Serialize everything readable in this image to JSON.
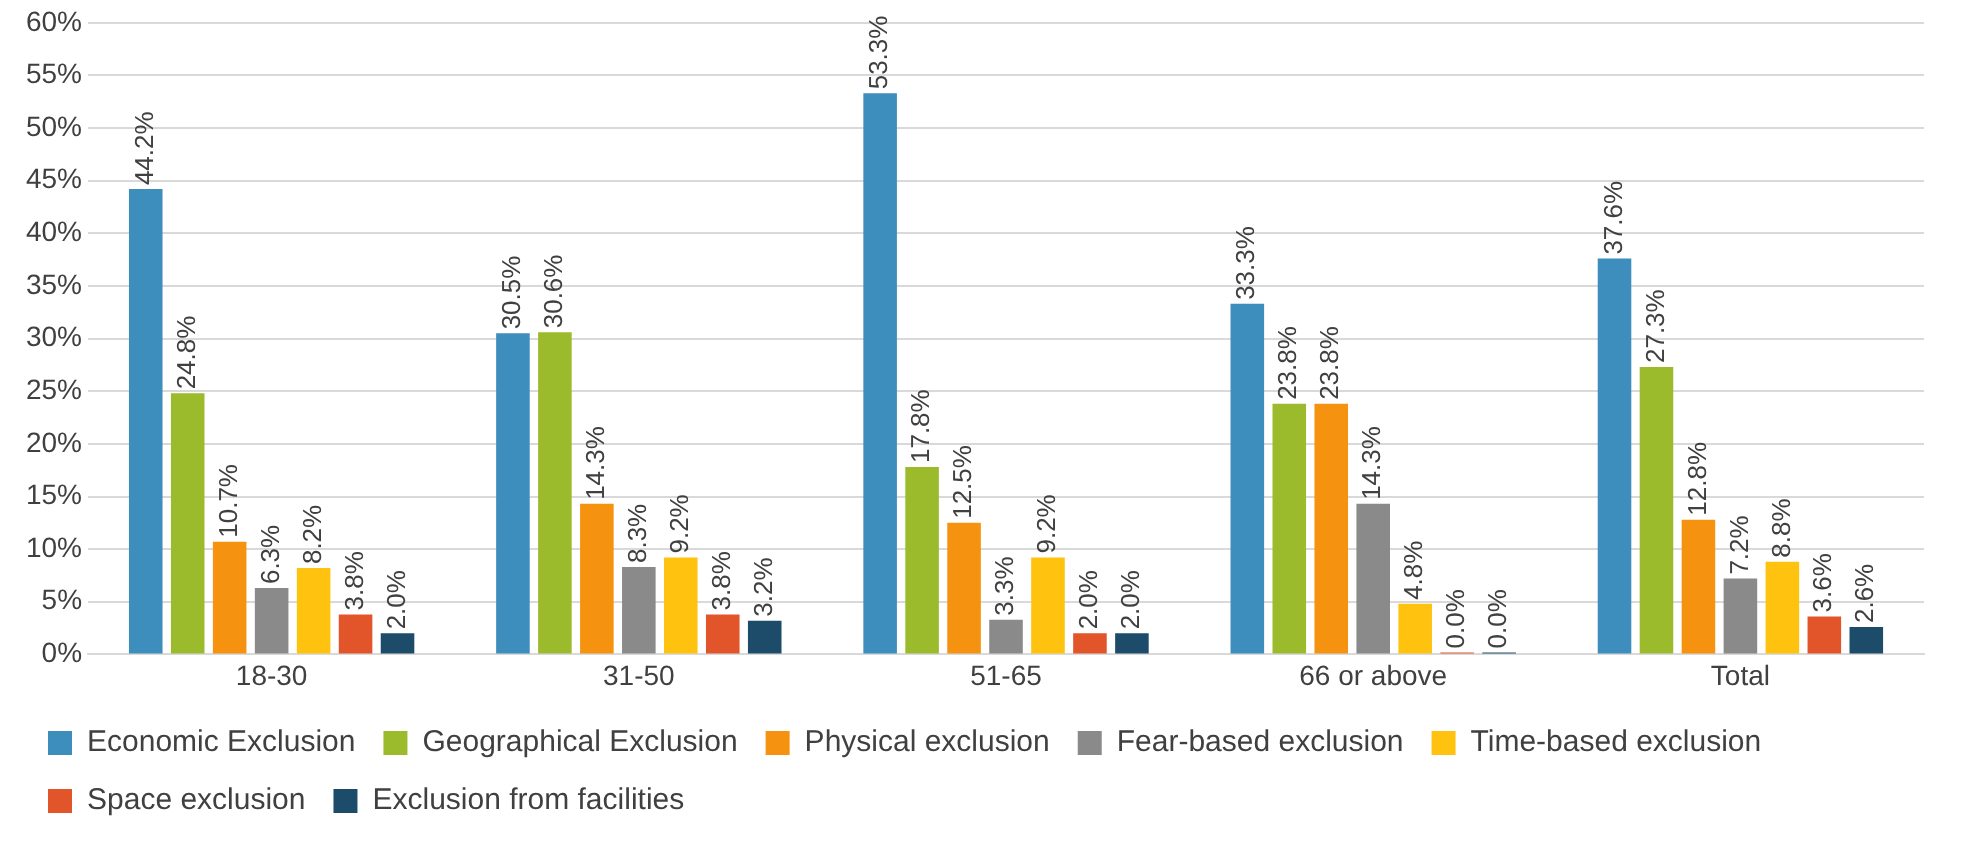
{
  "chart_data": {
    "type": "bar",
    "categories": [
      "18-30",
      "31-50",
      "51-65",
      "66 or above",
      "Total"
    ],
    "series": [
      {
        "name": "Economic Exclusion",
        "color": "#3d8dbd",
        "values": [
          44.2,
          30.5,
          53.3,
          33.3,
          37.6
        ],
        "value_labels": [
          "44.2%",
          "30.5%",
          "53.3%",
          "33.3%",
          "37.6%"
        ]
      },
      {
        "name": "Geographical Exclusion",
        "color": "#9cbb2c",
        "values": [
          24.8,
          30.6,
          17.8,
          23.8,
          27.3
        ],
        "value_labels": [
          "24.8%",
          "30.6%",
          "17.8%",
          "23.8%",
          "27.3%"
        ]
      },
      {
        "name": "Physical exclusion",
        "color": "#f5920f",
        "values": [
          10.7,
          14.3,
          12.5,
          23.8,
          12.8
        ],
        "value_labels": [
          "10.7%",
          "14.3%",
          "12.5%",
          "23.8%",
          "12.8%"
        ]
      },
      {
        "name": "Fear-based exclusion",
        "color": "#8a8a8a",
        "values": [
          6.3,
          8.3,
          3.3,
          14.3,
          7.2
        ],
        "value_labels": [
          "6.3%",
          "8.3%",
          "3.3%",
          "14.3%",
          "7.2%"
        ]
      },
      {
        "name": "Time-based exclusion",
        "color": "#ffc20e",
        "values": [
          8.2,
          9.2,
          9.2,
          4.8,
          8.8
        ],
        "value_labels": [
          "8.2%",
          "9.2%",
          "9.2%",
          "4.8%",
          "8.8%"
        ]
      },
      {
        "name": "Space exclusion",
        "color": "#e2552a",
        "values": [
          3.8,
          3.8,
          2.0,
          0.0,
          3.6
        ],
        "value_labels": [
          "3.8%",
          "3.8%",
          "2.0%",
          "0.0%",
          "3.6%"
        ]
      },
      {
        "name": "Exclusion from facilities",
        "color": "#1d4c6b",
        "values": [
          2.0,
          3.2,
          2.0,
          0.0,
          2.6
        ],
        "value_labels": [
          "2.0%",
          "3.2%",
          "2.0%",
          "0.0%",
          "2.6%"
        ]
      }
    ],
    "ylim": [
      0,
      60
    ],
    "yticks": [
      {
        "value": 0,
        "label": "0%"
      },
      {
        "value": 5,
        "label": "5%"
      },
      {
        "value": 10,
        "label": "10%"
      },
      {
        "value": 15,
        "label": "15%"
      },
      {
        "value": 20,
        "label": "20%"
      },
      {
        "value": 25,
        "label": "25%"
      },
      {
        "value": 30,
        "label": "30%"
      },
      {
        "value": 35,
        "label": "35%"
      },
      {
        "value": 40,
        "label": "40%"
      },
      {
        "value": 45,
        "label": "45%"
      },
      {
        "value": 50,
        "label": "50%"
      },
      {
        "value": 55,
        "label": "55%"
      },
      {
        "value": 60,
        "label": "60%"
      }
    ],
    "grid": "y",
    "legend": "bottom"
  }
}
